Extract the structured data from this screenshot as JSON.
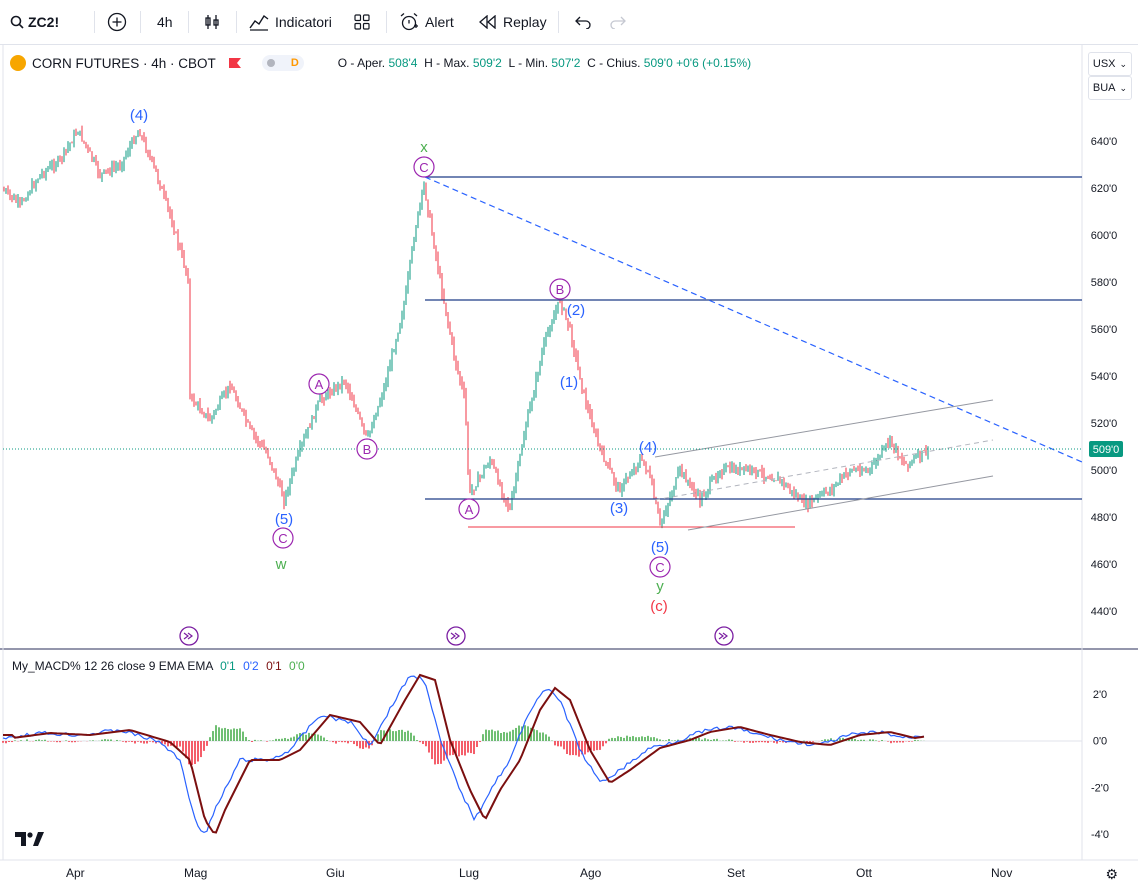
{
  "toolbar": {
    "symbol": "ZC2!",
    "interval": "4h",
    "indicators_label": "Indicatori",
    "alert_label": "Alert",
    "replay_label": "Replay"
  },
  "legend": {
    "title": "CORN FUTURES · 4h · CBOT",
    "badge": "D",
    "open_label": "O - Aper.",
    "open": "508'4",
    "high_label": "H - Max.",
    "high": "509'2",
    "low_label": "L - Min.",
    "low": "507'2",
    "close_label": "C - Chius.",
    "close": "509'0",
    "change": "+0'6 (+0.15%)"
  },
  "right_buttons": {
    "currency": "USX",
    "unit": "BUA"
  },
  "price_axis": [
    "640'0",
    "620'0",
    "600'0",
    "580'0",
    "560'0",
    "540'0",
    "520'0",
    "500'0",
    "480'0",
    "460'0",
    "440'0"
  ],
  "last_price": "509'0",
  "macd": {
    "label": "My_MACD% 12 26 close 9 EMA EMA",
    "v1": "0'1",
    "v2": "0'2",
    "v3": "0'1",
    "v4": "0'0",
    "axis": [
      "2'0",
      "0'0",
      "-2'0",
      "-4'0"
    ]
  },
  "time_axis": [
    "Apr",
    "Mag",
    "Giu",
    "Lug",
    "Ago",
    "Set",
    "Ott",
    "Nov"
  ],
  "wave_labels": {
    "w4": "(4)",
    "w5a": "(5)",
    "wC1": "C",
    "ww": "w",
    "wA1": "A",
    "wB1": "B",
    "wx": "x",
    "wC2": "C",
    "wA2": "A",
    "wB2": "B",
    "w2": "(2)",
    "w1": "(1)",
    "w3": "(3)",
    "w4b": "(4)",
    "w5b": "(5)",
    "wC3": "C",
    "wy": "y",
    "wc": "(c)"
  },
  "colors": {
    "up": "#089981",
    "down": "#f23645",
    "blue_wave": "#2962ff",
    "purple": "#9c27b0",
    "green": "#4caf50",
    "red": "#f23645"
  }
}
